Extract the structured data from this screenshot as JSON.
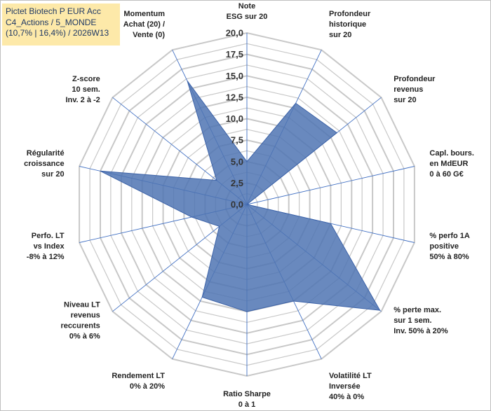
{
  "header": {
    "line1": "Pictet Biotech P EUR Acc",
    "line2": "C4_Actions / 5_MONDE",
    "line3": "(10,7% | 16,4%) / 2026W13"
  },
  "colors": {
    "series_fill": "#4f74b3",
    "series_stroke": "#3d63a8",
    "grid": "#c8c8c8",
    "spokes": "#4472c4",
    "info_box": "#fde9a9"
  },
  "chart_data": {
    "type": "radar",
    "rmin": 0,
    "rmax": 20,
    "tick_values": [
      0,
      2.5,
      5,
      7.5,
      10,
      12.5,
      15,
      17.5,
      20
    ],
    "tick_labels": [
      "0,0",
      "2,5",
      "5,0",
      "7,5",
      "10,0",
      "12,5",
      "15,0",
      "17,5",
      "20,0"
    ],
    "grid_rings": [
      1.25,
      2.5,
      3.75,
      5,
      6.25,
      7.5,
      8.75,
      10,
      11.25,
      12.5,
      13.75,
      15,
      16.25,
      17.5,
      18.75,
      20
    ],
    "axes": [
      {
        "lines": [
          "Note",
          "ESG sur 20"
        ]
      },
      {
        "lines": [
          "Profondeur",
          "historique",
          "sur 20"
        ]
      },
      {
        "lines": [
          "Profondeur",
          "revenus",
          "sur 20"
        ]
      },
      {
        "lines": [
          "Capl. bours.",
          "en MdEUR",
          "0 à 60 G€"
        ]
      },
      {
        "lines": [
          "% perfo 1A",
          "positive",
          "50% à 80%"
        ]
      },
      {
        "lines": [
          "% perte max.",
          "sur 1 sem.",
          "Inv. 50% à 20%"
        ]
      },
      {
        "lines": [
          "Volatilité LT",
          "Inversée",
          "40% à 0%"
        ]
      },
      {
        "lines": [
          "Ratio Sharpe",
          "0 à 1"
        ]
      },
      {
        "lines": [
          "Rendement LT",
          "0% à 20%"
        ]
      },
      {
        "lines": [
          "Niveau LT",
          "revenus",
          "reccurents",
          "0% à 6%"
        ]
      },
      {
        "lines": [
          "Perfo. LT",
          "vs Index",
          "-8% à 12%"
        ]
      },
      {
        "lines": [
          "Régularité",
          "croissance",
          "sur 20"
        ]
      },
      {
        "lines": [
          "Z-score",
          "10 sem.",
          "Inv. 2 à -2"
        ]
      },
      {
        "lines": [
          "Momentum",
          "Achat (20) /",
          "Vente (0)"
        ]
      }
    ],
    "values": [
      5,
      13.1,
      13.4,
      0,
      10,
      19.8,
      12.5,
      12.5,
      12,
      4.1,
      6.6,
      17.5,
      4.5,
      16
    ]
  }
}
